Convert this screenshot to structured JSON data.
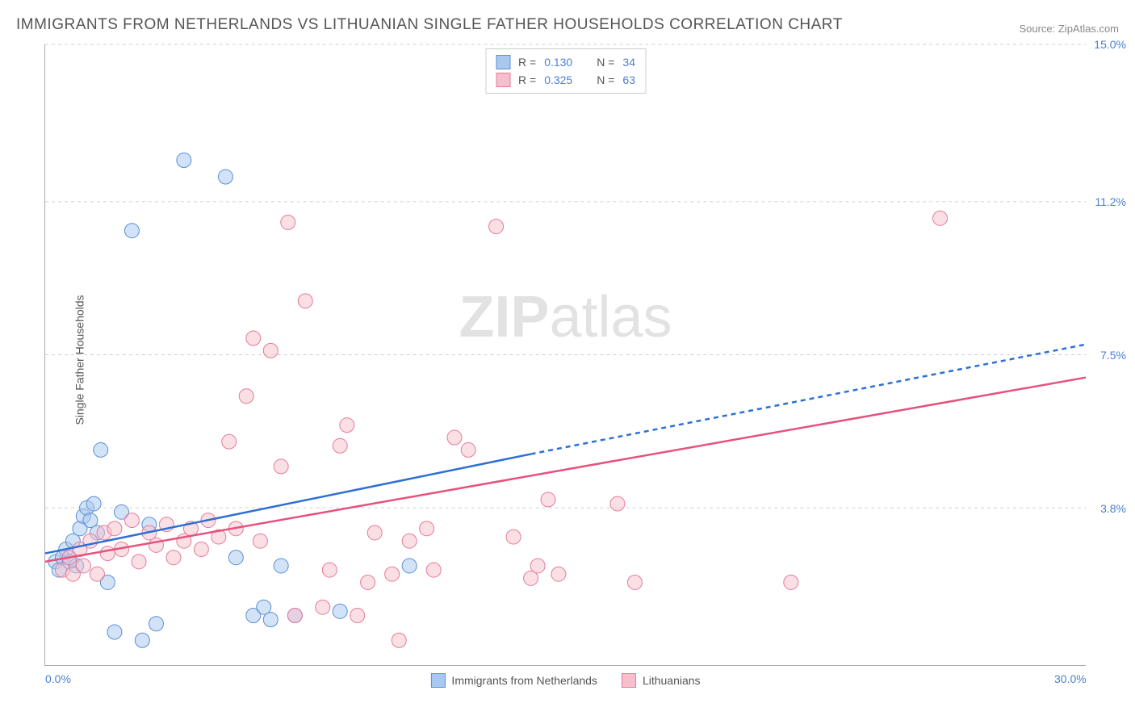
{
  "title": "IMMIGRANTS FROM NETHERLANDS VS LITHUANIAN SINGLE FATHER HOUSEHOLDS CORRELATION CHART",
  "source": "Source: ZipAtlas.com",
  "watermark_zip": "ZIP",
  "watermark_atlas": "atlas",
  "ylabel": "Single Father Households",
  "chart": {
    "type": "scatter",
    "background_color": "#ffffff",
    "grid_color": "#d0d0d0",
    "xlim": [
      0,
      30
    ],
    "ylim": [
      0,
      15
    ],
    "x_ticks": [
      {
        "value": 0,
        "label": "0.0%"
      },
      {
        "value": 30,
        "label": "30.0%"
      }
    ],
    "y_ticks": [
      {
        "value": 3.8,
        "label": "3.8%"
      },
      {
        "value": 7.5,
        "label": "7.5%"
      },
      {
        "value": 11.2,
        "label": "11.2%"
      },
      {
        "value": 15.0,
        "label": "15.0%"
      }
    ],
    "marker_radius": 9,
    "marker_opacity": 0.5,
    "trend_line_width": 2.5,
    "series": [
      {
        "id": "netherlands",
        "label": "Immigrants from Netherlands",
        "color_fill": "#a8c8f0",
        "color_stroke": "#5a8fd4",
        "r_value": "0.130",
        "n_value": "34",
        "trend_color": "#2e6fd4",
        "trend_start": [
          0,
          2.7
        ],
        "trend_solid_end": [
          14,
          5.1
        ],
        "trend_dash_end": [
          30,
          7.75
        ],
        "points": [
          [
            0.3,
            2.5
          ],
          [
            0.4,
            2.3
          ],
          [
            0.5,
            2.6
          ],
          [
            0.6,
            2.8
          ],
          [
            0.7,
            2.5
          ],
          [
            0.8,
            3.0
          ],
          [
            0.9,
            2.4
          ],
          [
            1.0,
            3.3
          ],
          [
            1.1,
            3.6
          ],
          [
            1.2,
            3.8
          ],
          [
            1.3,
            3.5
          ],
          [
            1.4,
            3.9
          ],
          [
            1.5,
            3.2
          ],
          [
            1.6,
            5.2
          ],
          [
            1.8,
            2.0
          ],
          [
            2.0,
            0.8
          ],
          [
            2.2,
            3.7
          ],
          [
            2.5,
            10.5
          ],
          [
            2.8,
            0.6
          ],
          [
            3.0,
            3.4
          ],
          [
            3.2,
            1.0
          ],
          [
            4.0,
            12.2
          ],
          [
            5.2,
            11.8
          ],
          [
            5.5,
            2.6
          ],
          [
            6.0,
            1.2
          ],
          [
            6.3,
            1.4
          ],
          [
            6.5,
            1.1
          ],
          [
            6.8,
            2.4
          ],
          [
            7.2,
            1.2
          ],
          [
            8.5,
            1.3
          ],
          [
            10.5,
            2.4
          ]
        ]
      },
      {
        "id": "lithuanians",
        "label": "Lithuanians",
        "color_fill": "#f5c0cc",
        "color_stroke": "#e67a99",
        "r_value": "0.325",
        "n_value": "63",
        "trend_color": "#e6517d",
        "trend_start": [
          0,
          2.5
        ],
        "trend_solid_end": [
          30,
          6.95
        ],
        "trend_dash_end": null,
        "points": [
          [
            0.5,
            2.3
          ],
          [
            0.7,
            2.6
          ],
          [
            0.8,
            2.2
          ],
          [
            1.0,
            2.8
          ],
          [
            1.1,
            2.4
          ],
          [
            1.3,
            3.0
          ],
          [
            1.5,
            2.2
          ],
          [
            1.7,
            3.2
          ],
          [
            1.8,
            2.7
          ],
          [
            2.0,
            3.3
          ],
          [
            2.2,
            2.8
          ],
          [
            2.5,
            3.5
          ],
          [
            2.7,
            2.5
          ],
          [
            3.0,
            3.2
          ],
          [
            3.2,
            2.9
          ],
          [
            3.5,
            3.4
          ],
          [
            3.7,
            2.6
          ],
          [
            4.0,
            3.0
          ],
          [
            4.2,
            3.3
          ],
          [
            4.5,
            2.8
          ],
          [
            4.7,
            3.5
          ],
          [
            5.0,
            3.1
          ],
          [
            5.3,
            5.4
          ],
          [
            5.5,
            3.3
          ],
          [
            5.8,
            6.5
          ],
          [
            6.0,
            7.9
          ],
          [
            6.2,
            3.0
          ],
          [
            6.5,
            7.6
          ],
          [
            6.8,
            4.8
          ],
          [
            7.0,
            10.7
          ],
          [
            7.2,
            1.2
          ],
          [
            7.5,
            8.8
          ],
          [
            8.0,
            1.4
          ],
          [
            8.2,
            2.3
          ],
          [
            8.5,
            5.3
          ],
          [
            8.7,
            5.8
          ],
          [
            9.0,
            1.2
          ],
          [
            9.3,
            2.0
          ],
          [
            9.5,
            3.2
          ],
          [
            10.0,
            2.2
          ],
          [
            10.2,
            0.6
          ],
          [
            10.5,
            3.0
          ],
          [
            11.0,
            3.3
          ],
          [
            11.2,
            2.3
          ],
          [
            11.8,
            5.5
          ],
          [
            12.2,
            5.2
          ],
          [
            13.0,
            10.6
          ],
          [
            13.5,
            3.1
          ],
          [
            14.0,
            2.1
          ],
          [
            14.2,
            2.4
          ],
          [
            14.5,
            4.0
          ],
          [
            14.8,
            2.2
          ],
          [
            16.5,
            3.9
          ],
          [
            17.0,
            2.0
          ],
          [
            21.5,
            2.0
          ],
          [
            25.8,
            10.8
          ]
        ]
      }
    ],
    "legend_top": {
      "r_label": "R =",
      "n_label": "N ="
    }
  }
}
